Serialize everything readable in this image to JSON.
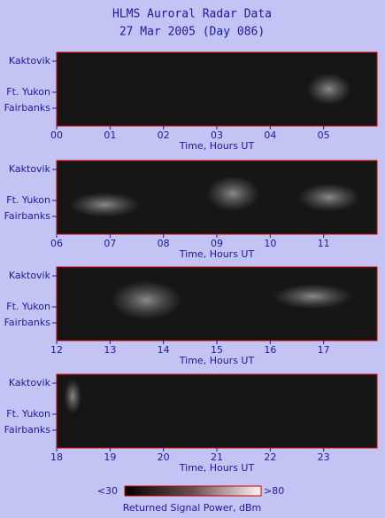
{
  "title": "HLMS Auroral Radar Data",
  "subtitle": "27 Mar 2005 (Day 086)",
  "chart_data": [
    {
      "type": "heatmap",
      "xlim": [
        0,
        6
      ],
      "xticks": [
        {
          "value": 0,
          "label": "00"
        },
        {
          "value": 1,
          "label": "01"
        },
        {
          "value": 2,
          "label": "02"
        },
        {
          "value": 3,
          "label": "03"
        },
        {
          "value": 4,
          "label": "04"
        },
        {
          "value": 5,
          "label": "05"
        }
      ],
      "xlabel": "Time, Hours UT",
      "ylabels": [
        "Kaktovik",
        "Ft. Yukon",
        "Fairbanks"
      ]
    },
    {
      "type": "heatmap",
      "xlim": [
        6,
        12
      ],
      "xticks": [
        {
          "value": 6,
          "label": "06"
        },
        {
          "value": 7,
          "label": "07"
        },
        {
          "value": 8,
          "label": "08"
        },
        {
          "value": 9,
          "label": "09"
        },
        10,
        11
      ],
      "xlabel": "Time, Hours UT",
      "ylabels": [
        "Kaktovik",
        "Ft. Yukon",
        "Fairbanks"
      ]
    },
    {
      "type": "heatmap",
      "xlim": [
        12,
        18
      ],
      "xticks": [
        12,
        13,
        14,
        15,
        16,
        17
      ],
      "xlabel": "Time, Hours UT",
      "ylabels": [
        "Kaktovik",
        "Ft. Yukon",
        "Fairbanks"
      ]
    },
    {
      "type": "heatmap",
      "xlim": [
        18,
        24
      ],
      "xticks": [
        18,
        19,
        20,
        21,
        22,
        23
      ],
      "xlabel": "Time, Hours UT",
      "ylabels": [
        "Kaktovik",
        "Ft. Yukon",
        "Fairbanks"
      ]
    }
  ],
  "colorbar": {
    "min": {
      "value": 30,
      "label": "<30"
    },
    "max": {
      "value": 80,
      "label": ">80"
    },
    "label": "Returned Signal Power, dBm"
  }
}
